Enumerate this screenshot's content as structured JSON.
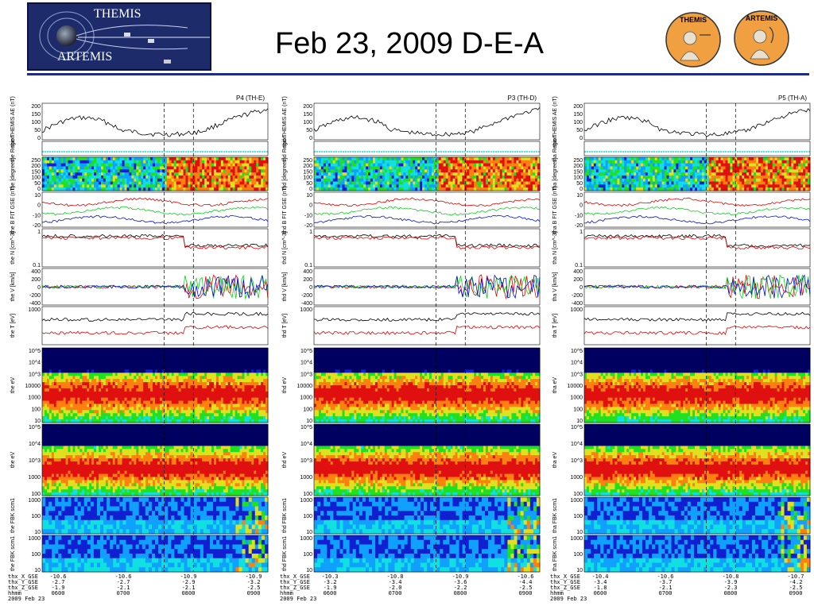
{
  "header": {
    "title": "Feb 23, 2009 D-E-A",
    "logo_top": "THEMIS",
    "logo_bottom": "ARTEMIS",
    "badge1": "THEMIS",
    "badge2": "ARTEMIS",
    "accent": "#1d2b8a"
  },
  "chart_data": [
    {
      "type": "line",
      "probe_label": "P4 (TH-E)",
      "prefix": "the",
      "footer": {
        "rows": [
          "thx_X_GSE",
          "thx_Y_GSE",
          "thx_Z_GSE",
          "hhmm",
          "2009 Feb 23"
        ],
        "cols": [
          [
            "-10.6",
            "-2.7",
            "-1.9",
            "0600",
            ""
          ],
          [
            "-10.6",
            "-2.7",
            "-2.1",
            "0700",
            ""
          ],
          [
            "-10.9",
            "-2.9",
            "-2.1",
            "0800",
            ""
          ],
          [
            "-10.9",
            "-3.2",
            "-2.5",
            "0900",
            ""
          ]
        ]
      }
    },
    {
      "type": "line",
      "probe_label": "P3 (TH-D)",
      "prefix": "thd",
      "footer": {
        "rows": [
          "thx_X_GSE",
          "thx_Y_GSE",
          "thx_Z_GSE",
          "hhmm",
          "2009 Feb 23"
        ],
        "cols": [
          [
            "-10.3",
            "-3.2",
            "-1.9",
            "0600",
            ""
          ],
          [
            "-10.8",
            "-3.4",
            "-2.0",
            "0700",
            ""
          ],
          [
            "-10.9",
            "-3.6",
            "-2.2",
            "0800",
            ""
          ],
          [
            "-10.6",
            "-4.4",
            "-2.5",
            "0900",
            ""
          ]
        ]
      }
    },
    {
      "type": "line",
      "probe_label": "P5 (TH-A)",
      "prefix": "tha",
      "footer": {
        "rows": [
          "thx_X_GSE",
          "thx_Y_GSE",
          "thx_Z_GSE",
          "hhmm",
          "2009 Feb 23"
        ],
        "cols": [
          [
            "-10.4",
            "-3.4",
            "-1.8",
            "0600",
            ""
          ],
          [
            "-10.6",
            "-3.7",
            "-2.1",
            "0700",
            ""
          ],
          [
            "-10.8",
            "-3.9",
            "-2.3",
            "0800",
            ""
          ],
          [
            "-10.7",
            "-4.2",
            "-2.5",
            "0900",
            ""
          ]
        ]
      }
    }
  ],
  "panels": {
    "ae": {
      "ylabel": "THEMIS AE (nT)",
      "ticks": [
        "200",
        "150",
        "100",
        "50",
        "0"
      ]
    },
    "region": {
      "ylabel": "Region"
    },
    "spin": {
      "ylabel": "[degrees]",
      "ticks": [
        "250",
        "200",
        "150",
        "100",
        "50",
        "0"
      ]
    },
    "bfit": {
      "ylabel": "B FIT GSE (nT)",
      "ticks": [
        "10",
        "0",
        "-10",
        "-20"
      ]
    },
    "density": {
      "ylabel": "N [cm^-3]",
      "ticks": [
        "1",
        "0.1"
      ]
    },
    "velocity": {
      "ylabel": "V [km/s]",
      "ticks": [
        "400",
        "200",
        "0",
        "-200",
        "-400"
      ]
    },
    "temp": {
      "ylabel": "T [eV]",
      "ticks": [
        "1000"
      ]
    },
    "espec": {
      "ylabel": "eV",
      "ticks": [
        "10^5",
        "10^4",
        "10^3",
        "10000",
        "1000",
        "100",
        "10"
      ]
    },
    "ispec": {
      "ylabel": "eV",
      "ticks": [
        "10^5",
        "10^4",
        "10^3",
        "1000",
        "100"
      ]
    },
    "fbk1": {
      "ylabel": "FBK scm1",
      "ticks": [
        "1000",
        "100",
        "10"
      ]
    },
    "fbk2": {
      "ylabel": "FBK scm1",
      "ticks": [
        "1000",
        "100",
        "10"
      ]
    }
  },
  "colors": {
    "red": "#e00000",
    "green": "#10d020",
    "blue": "#0010d0",
    "black": "#000000",
    "cyan": "#10e0e0"
  }
}
